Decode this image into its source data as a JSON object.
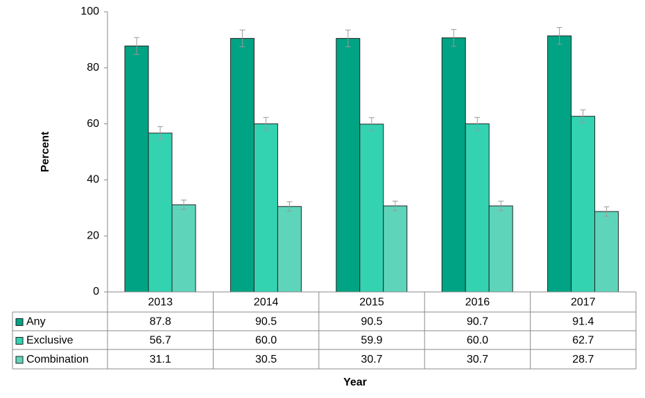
{
  "chart_data": {
    "type": "bar",
    "categories": [
      "2013",
      "2014",
      "2015",
      "2016",
      "2017"
    ],
    "series": [
      {
        "name": "Any",
        "color": "#00a383",
        "values": [
          87.8,
          90.5,
          90.5,
          90.7,
          91.4
        ],
        "errors": [
          3,
          3,
          3,
          3,
          3
        ]
      },
      {
        "name": "Exclusive",
        "color": "#33d3b2",
        "values": [
          56.7,
          60.0,
          59.9,
          60.0,
          62.7
        ],
        "value_labels": [
          "56.7",
          "60.0",
          "59.9",
          "60.0",
          "62.7"
        ],
        "errors": [
          2.3,
          2.3,
          2.3,
          2.3,
          2.3
        ]
      },
      {
        "name": "Combination",
        "color": "#5ed5ba",
        "values": [
          31.1,
          30.5,
          30.7,
          30.7,
          28.7
        ],
        "errors": [
          1.7,
          1.7,
          1.7,
          1.7,
          1.7
        ]
      }
    ],
    "x_label": "Year",
    "y_label": "Percent",
    "ylim": [
      0,
      100
    ],
    "yticks": [
      0,
      20,
      40,
      60,
      80,
      100
    ],
    "grid": false
  }
}
